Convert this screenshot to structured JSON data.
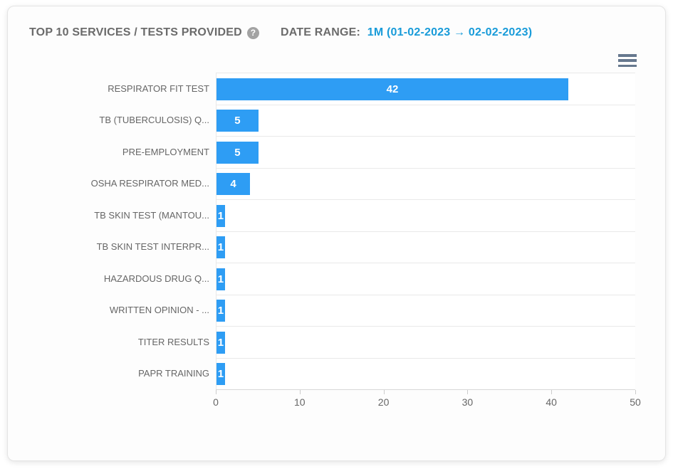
{
  "header": {
    "title": "TOP 10 SERVICES / TESTS PROVIDED",
    "help_icon": "question-mark-icon",
    "date_range_label": "DATE RANGE:",
    "date_range_value": "1M (01-02-2023 → 02-02-2023)"
  },
  "menu": {
    "icon": "hamburger-menu-icon"
  },
  "colors": {
    "bar": "#2e9df4",
    "accent_text": "#189bd9",
    "muted_text": "#6b6b6b",
    "axis_text": "#666666",
    "gridline": "#e9e9e9",
    "axis_line": "#d7d7d7"
  },
  "chart_data": {
    "type": "bar",
    "orientation": "horizontal",
    "title": "TOP 10 SERVICES / TESTS PROVIDED",
    "categories": [
      "RESPIRATOR FIT TEST",
      "TB (TUBERCULOSIS) Q...",
      "PRE-EMPLOYMENT",
      "OSHA RESPIRATOR MED...",
      "TB SKIN TEST (MANTOU...",
      "TB SKIN TEST INTERPR...",
      "HAZARDOUS DRUG Q...",
      "WRITTEN OPINION - ...",
      "TITER RESULTS",
      "PAPR TRAINING"
    ],
    "values": [
      42,
      5,
      5,
      4,
      1,
      1,
      1,
      1,
      1,
      1
    ],
    "xlabel": "",
    "ylabel": "",
    "xlim": [
      0,
      50
    ],
    "x_ticks": [
      0,
      10,
      20,
      30,
      40,
      50
    ],
    "grid": "category-separator-lines",
    "legend": "none",
    "data_labels": "inside-center-white"
  }
}
